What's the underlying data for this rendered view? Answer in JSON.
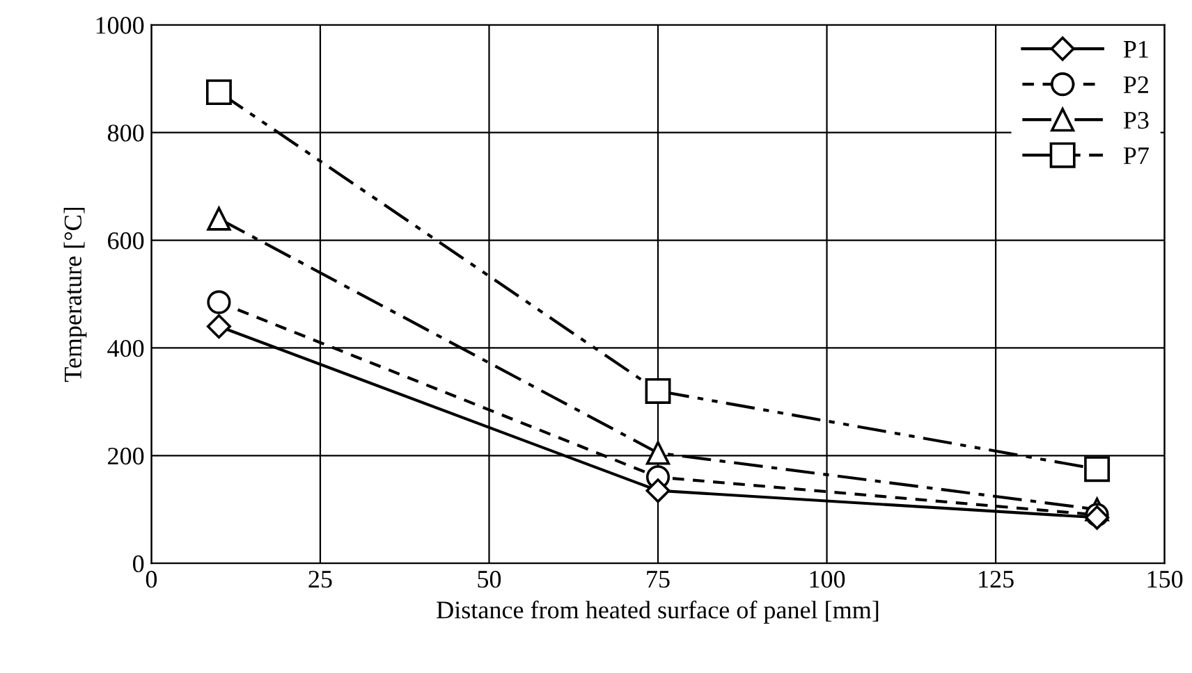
{
  "chart_data": {
    "type": "line",
    "xlabel": "Distance from heated surface of panel [mm]",
    "ylabel": "Temperature [°C]",
    "x": [
      10,
      75,
      140
    ],
    "series": [
      {
        "name": "P1",
        "color": "#000000",
        "values": [
          440,
          135,
          85
        ],
        "marker": "diamond",
        "line_style": "solid"
      },
      {
        "name": "P2",
        "color": "#000000",
        "values": [
          485,
          160,
          90
        ],
        "marker": "circle",
        "line_style": "dashed"
      },
      {
        "name": "P3",
        "color": "#000000",
        "values": [
          640,
          205,
          100
        ],
        "marker": "triangle",
        "line_style": "dashdot"
      },
      {
        "name": "P7",
        "color": "#000000",
        "values": [
          875,
          320,
          175
        ],
        "marker": "square",
        "line_style": "dashdotdot"
      }
    ],
    "xlim": [
      0,
      150
    ],
    "xticks": [
      0,
      25,
      50,
      75,
      100,
      125,
      150
    ],
    "ylim": [
      0,
      1000
    ],
    "yticks": [
      0,
      200,
      400,
      600,
      800,
      1000
    ],
    "grid": true,
    "legend": "top right"
  }
}
